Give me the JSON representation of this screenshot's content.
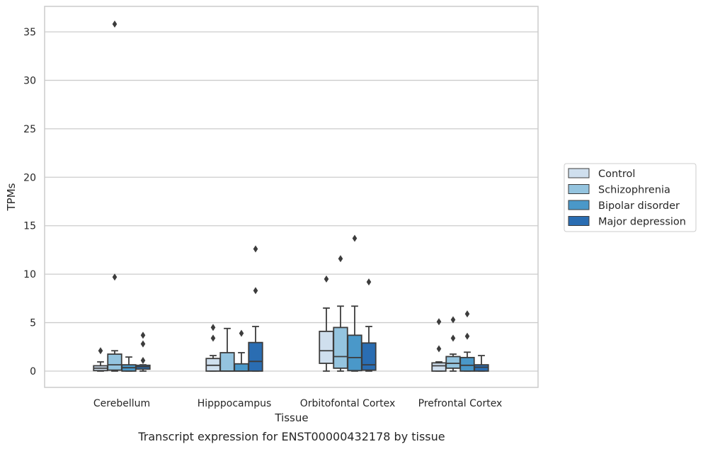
{
  "chart_data": {
    "type": "box",
    "title": "",
    "caption": "Transcript expression for ENST00000432178 by tissue",
    "xlabel": "Tissue",
    "ylabel": "TPMs",
    "ylim": [
      -1.7,
      37.2
    ],
    "yticks": [
      0,
      5,
      10,
      15,
      20,
      25,
      30,
      35
    ],
    "grid": "horizontal",
    "legend_position": "right",
    "categories": [
      "Cerebellum",
      "Hipppocampus",
      "Orbitofontal Cortex",
      "Prefrontal Cortex"
    ],
    "series": [
      {
        "name": "Control",
        "color": "#cfdfee",
        "boxes": [
          {
            "whisker_low": 0,
            "q1": 0.05,
            "median": 0.3,
            "q3": 0.55,
            "whisker_high": 0.95,
            "outliers": [
              2.1
            ]
          },
          {
            "whisker_low": 0,
            "q1": 0,
            "median": 0.6,
            "q3": 1.3,
            "whisker_high": 1.6,
            "outliers": [
              3.4,
              4.5
            ]
          },
          {
            "whisker_low": 0,
            "q1": 0.8,
            "median": 2.1,
            "q3": 4.1,
            "whisker_high": 6.5,
            "outliers": [
              9.5
            ]
          },
          {
            "whisker_low": 0,
            "q1": 0,
            "median": 0.55,
            "q3": 0.85,
            "whisker_high": 0.95,
            "outliers": [
              2.3,
              5.1
            ]
          }
        ]
      },
      {
        "name": "Schizophrenia",
        "color": "#94c4df",
        "boxes": [
          {
            "whisker_low": 0,
            "q1": 0.1,
            "median": 0.65,
            "q3": 1.75,
            "whisker_high": 2.1,
            "outliers": [
              9.7,
              35.8
            ]
          },
          {
            "whisker_low": 0,
            "q1": 0,
            "median": 0,
            "q3": 1.9,
            "whisker_high": 4.4,
            "outliers": []
          },
          {
            "whisker_low": 0,
            "q1": 0.3,
            "median": 1.5,
            "q3": 4.5,
            "whisker_high": 6.7,
            "outliers": [
              11.6
            ]
          },
          {
            "whisker_low": 0,
            "q1": 0.3,
            "median": 0.8,
            "q3": 1.5,
            "whisker_high": 1.75,
            "outliers": [
              3.4,
              5.3
            ]
          }
        ]
      },
      {
        "name": "Bipolar disorder",
        "color": "#4a98c9",
        "boxes": [
          {
            "whisker_low": 0,
            "q1": 0,
            "median": 0.35,
            "q3": 0.65,
            "whisker_high": 1.45,
            "outliers": []
          },
          {
            "whisker_low": 0,
            "q1": 0,
            "median": 0,
            "q3": 0.75,
            "whisker_high": 1.9,
            "outliers": [
              3.9
            ]
          },
          {
            "whisker_low": 0,
            "q1": 0.05,
            "median": 1.4,
            "q3": 3.7,
            "whisker_high": 6.7,
            "outliers": [
              13.7
            ]
          },
          {
            "whisker_low": 0,
            "q1": 0,
            "median": 0.6,
            "q3": 1.4,
            "whisker_high": 1.95,
            "outliers": [
              3.6,
              5.9
            ]
          }
        ]
      },
      {
        "name": "Major depression",
        "color": "#2a6db2",
        "boxes": [
          {
            "whisker_low": 0,
            "q1": 0.2,
            "median": 0.45,
            "q3": 0.6,
            "whisker_high": 0.65,
            "outliers": [
              1.1,
              2.8,
              3.7
            ]
          },
          {
            "whisker_low": 0,
            "q1": 0,
            "median": 1.0,
            "q3": 2.95,
            "whisker_high": 4.6,
            "outliers": [
              8.3,
              12.6
            ]
          },
          {
            "whisker_low": 0,
            "q1": 0.1,
            "median": 0.65,
            "q3": 2.9,
            "whisker_high": 4.6,
            "outliers": [
              9.2
            ]
          },
          {
            "whisker_low": 0,
            "q1": 0,
            "median": 0.4,
            "q3": 0.65,
            "whisker_high": 1.6,
            "outliers": []
          }
        ]
      }
    ]
  }
}
